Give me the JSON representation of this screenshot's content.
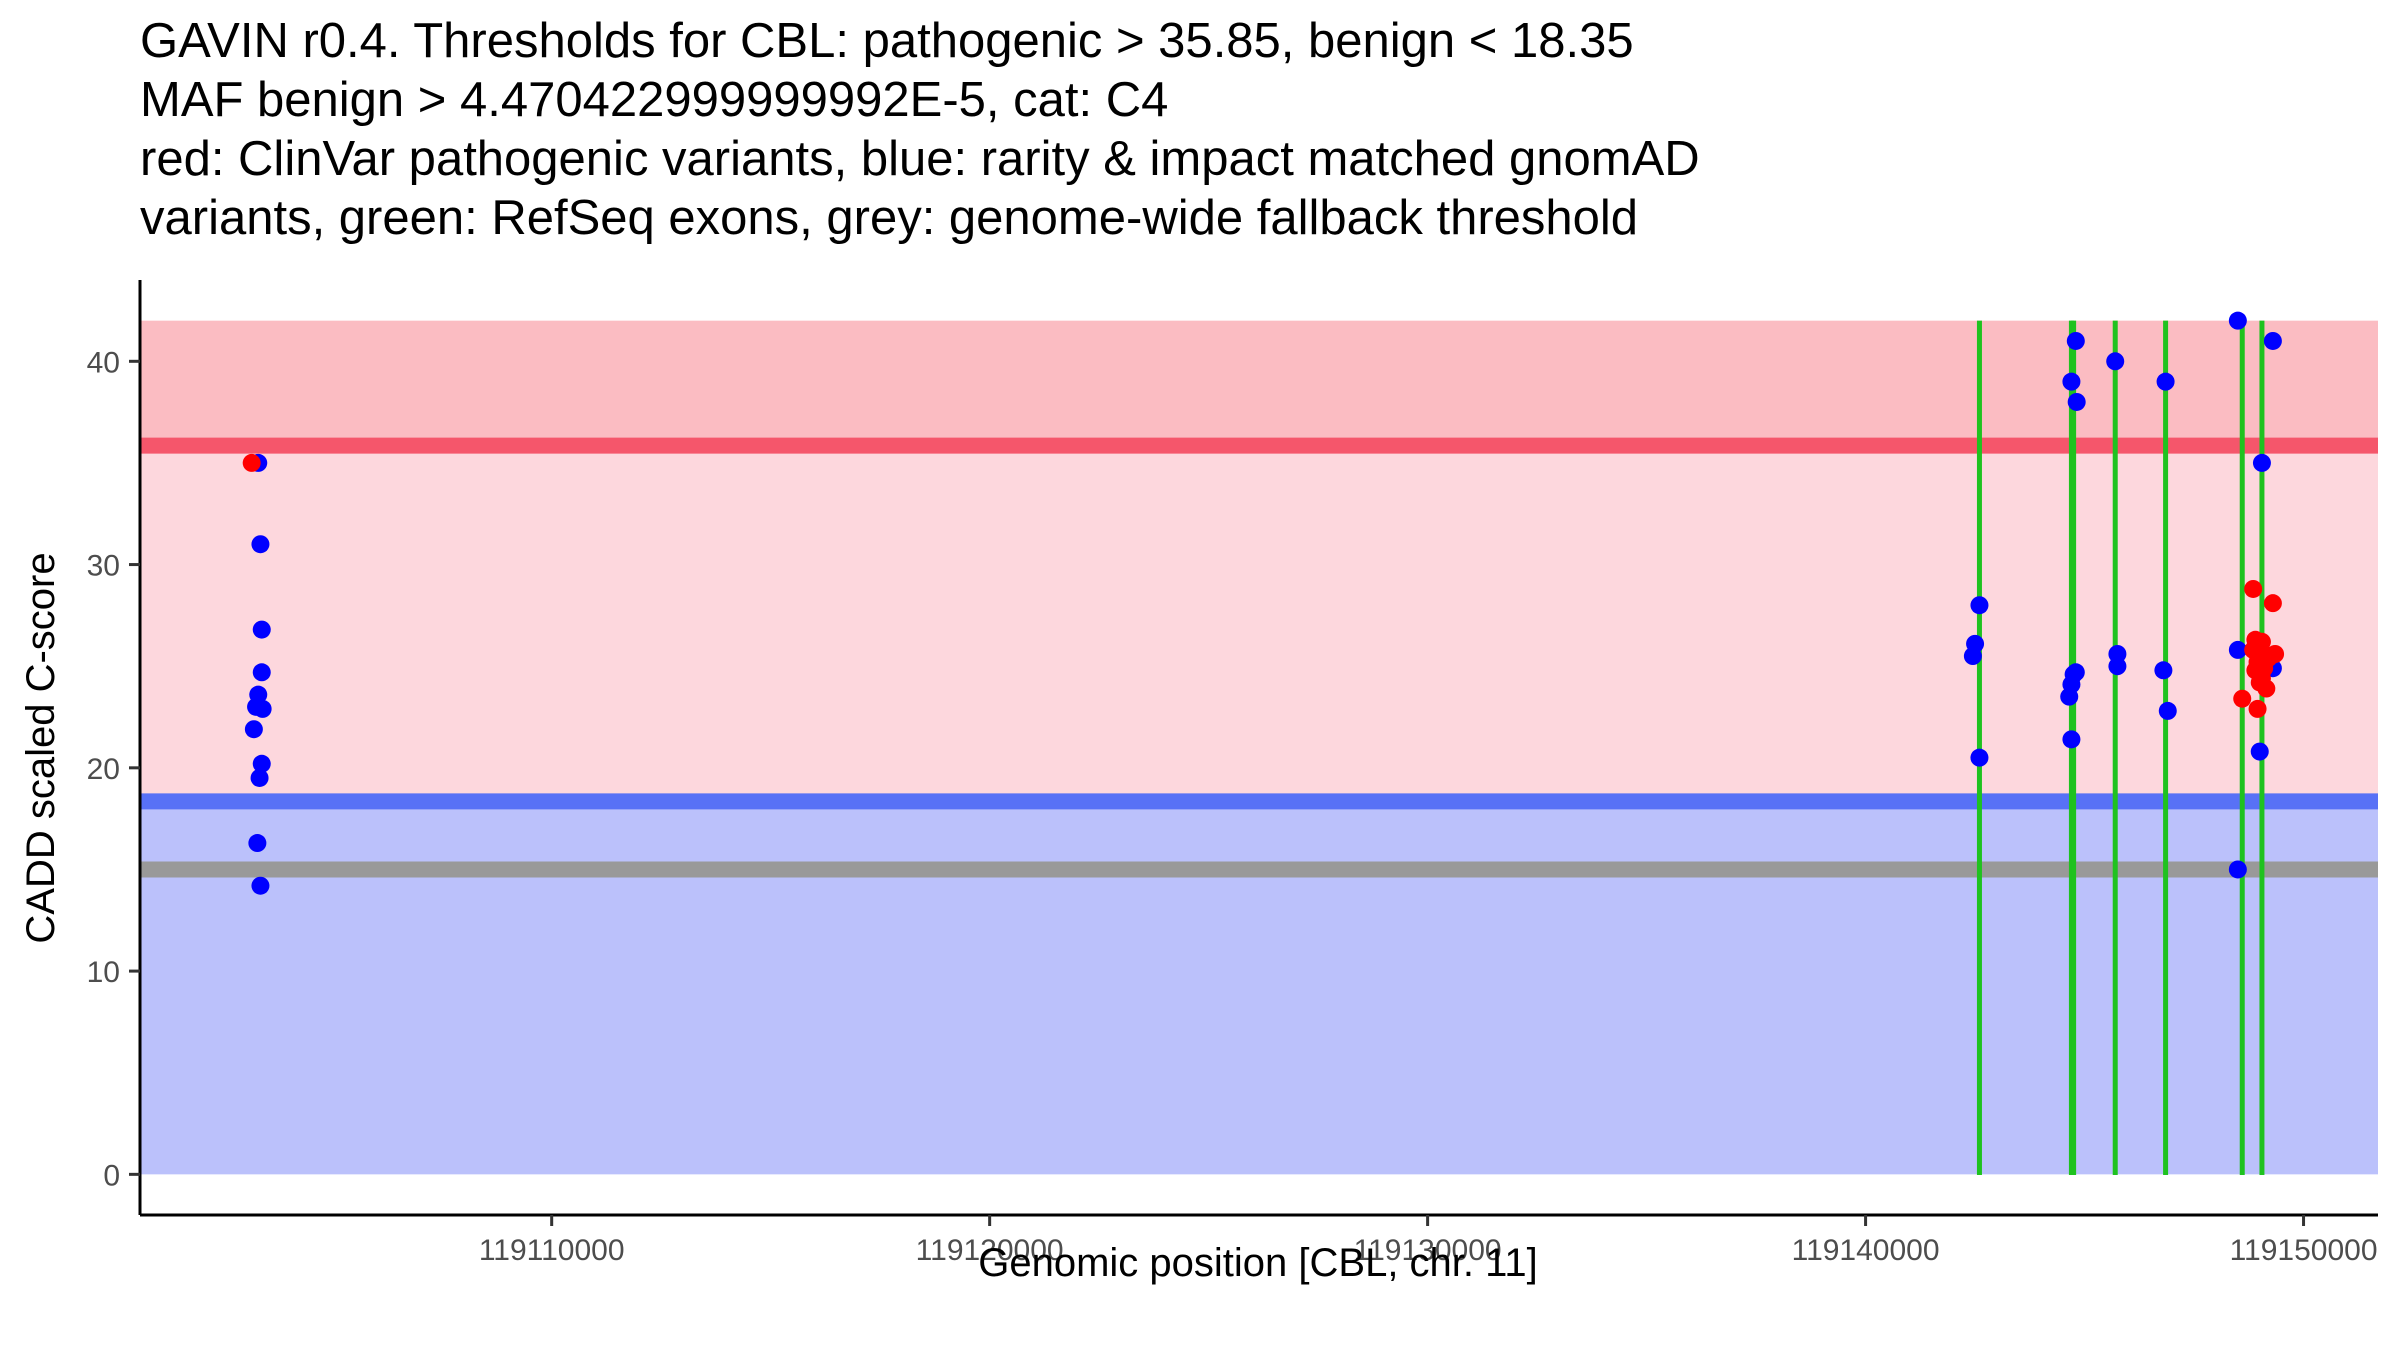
{
  "title_lines": [
    "GAVIN r0.4. Thresholds for CBL: pathogenic > 35.85, benign < 18.35",
    "MAF benign > 4.470422999999992E-5, cat: C4",
    "red: ClinVar pathogenic variants, blue: rarity & impact matched gnomAD",
    "variants, green: RefSeq exons, grey: genome-wide fallback threshold"
  ],
  "chart_data": {
    "type": "scatter",
    "title": "GAVIN r0.4. Thresholds for CBL: pathogenic > 35.85, benign < 18.35",
    "xlabel": "Genomic position [CBL, chr. 11]",
    "ylabel": "CADD scaled C-score",
    "xlim": [
      119100600,
      119151700
    ],
    "ylim": [
      -2,
      44
    ],
    "xticks": [
      119110000,
      119120000,
      119130000,
      119140000,
      119150000
    ],
    "xtick_labels": [
      "119110000",
      "119120000",
      "119130000",
      "119140000",
      "119150000"
    ],
    "yticks": [
      0,
      10,
      20,
      30,
      40
    ],
    "ytick_labels": [
      "0",
      "10",
      "20",
      "30",
      "40"
    ],
    "bands": [
      {
        "name": "pathogenic-zone",
        "from": 35.85,
        "to": 42,
        "color": "#fbbcc2"
      },
      {
        "name": "vus-zone",
        "from": 18.35,
        "to": 35.85,
        "color": "#fdd7dd"
      },
      {
        "name": "benign-zone",
        "from": 0,
        "to": 18.35,
        "color": "#bbc1fb"
      }
    ],
    "hlines": [
      {
        "name": "pathogenic-threshold",
        "y": 35.85,
        "color": "#f5566b"
      },
      {
        "name": "benign-threshold",
        "y": 18.35,
        "color": "#5871f6"
      },
      {
        "name": "fallback-threshold",
        "y": 15.0,
        "color": "#999999"
      }
    ],
    "exons": [
      119142600,
      119144700,
      119144750,
      119145700,
      119146850,
      119148600,
      119149050
    ],
    "exon_color": "#1fc21f",
    "series": [
      {
        "name": "gnomAD matched variants",
        "color": "#0000ff",
        "points": [
          [
            119103300,
            35
          ],
          [
            119103350,
            31
          ],
          [
            119103380,
            26.8
          ],
          [
            119103380,
            24.7
          ],
          [
            119103300,
            23.6
          ],
          [
            119103250,
            23
          ],
          [
            119103400,
            22.9
          ],
          [
            119103200,
            21.9
          ],
          [
            119103380,
            20.2
          ],
          [
            119103330,
            19.5
          ],
          [
            119103280,
            16.3
          ],
          [
            119103350,
            14.2
          ],
          [
            119142600,
            28
          ],
          [
            119142500,
            26.1
          ],
          [
            119142450,
            25.5
          ],
          [
            119142600,
            20.5
          ],
          [
            119144800,
            41
          ],
          [
            119144700,
            39
          ],
          [
            119144820,
            38
          ],
          [
            119144750,
            24.6
          ],
          [
            119144800,
            24.7
          ],
          [
            119144700,
            24.1
          ],
          [
            119144650,
            23.5
          ],
          [
            119144700,
            21.4
          ],
          [
            119145700,
            40
          ],
          [
            119145750,
            25.6
          ],
          [
            119145750,
            25
          ],
          [
            119146850,
            39
          ],
          [
            119146800,
            24.8
          ],
          [
            119146900,
            22.8
          ],
          [
            119148500,
            42
          ],
          [
            119148500,
            25.8
          ],
          [
            119148500,
            15
          ],
          [
            119149050,
            35
          ],
          [
            119149300,
            41
          ],
          [
            119149300,
            24.9
          ],
          [
            119149000,
            20.8
          ]
        ]
      },
      {
        "name": "ClinVar pathogenic variants",
        "color": "#ff0000",
        "points": [
          [
            119103150,
            35
          ],
          [
            119148600,
            23.4
          ],
          [
            119148850,
            28.8
          ],
          [
            119149300,
            28.1
          ],
          [
            119148900,
            26.3
          ],
          [
            119149000,
            26.1
          ],
          [
            119149050,
            26.2
          ],
          [
            119148850,
            25.8
          ],
          [
            119149100,
            25.6
          ],
          [
            119149200,
            25.4
          ],
          [
            119149350,
            25.6
          ],
          [
            119148950,
            25.2
          ],
          [
            119149100,
            24.9
          ],
          [
            119148900,
            24.8
          ],
          [
            119149050,
            24.4
          ],
          [
            119149000,
            24.2
          ],
          [
            119149150,
            23.9
          ],
          [
            119148950,
            22.9
          ]
        ]
      }
    ]
  }
}
